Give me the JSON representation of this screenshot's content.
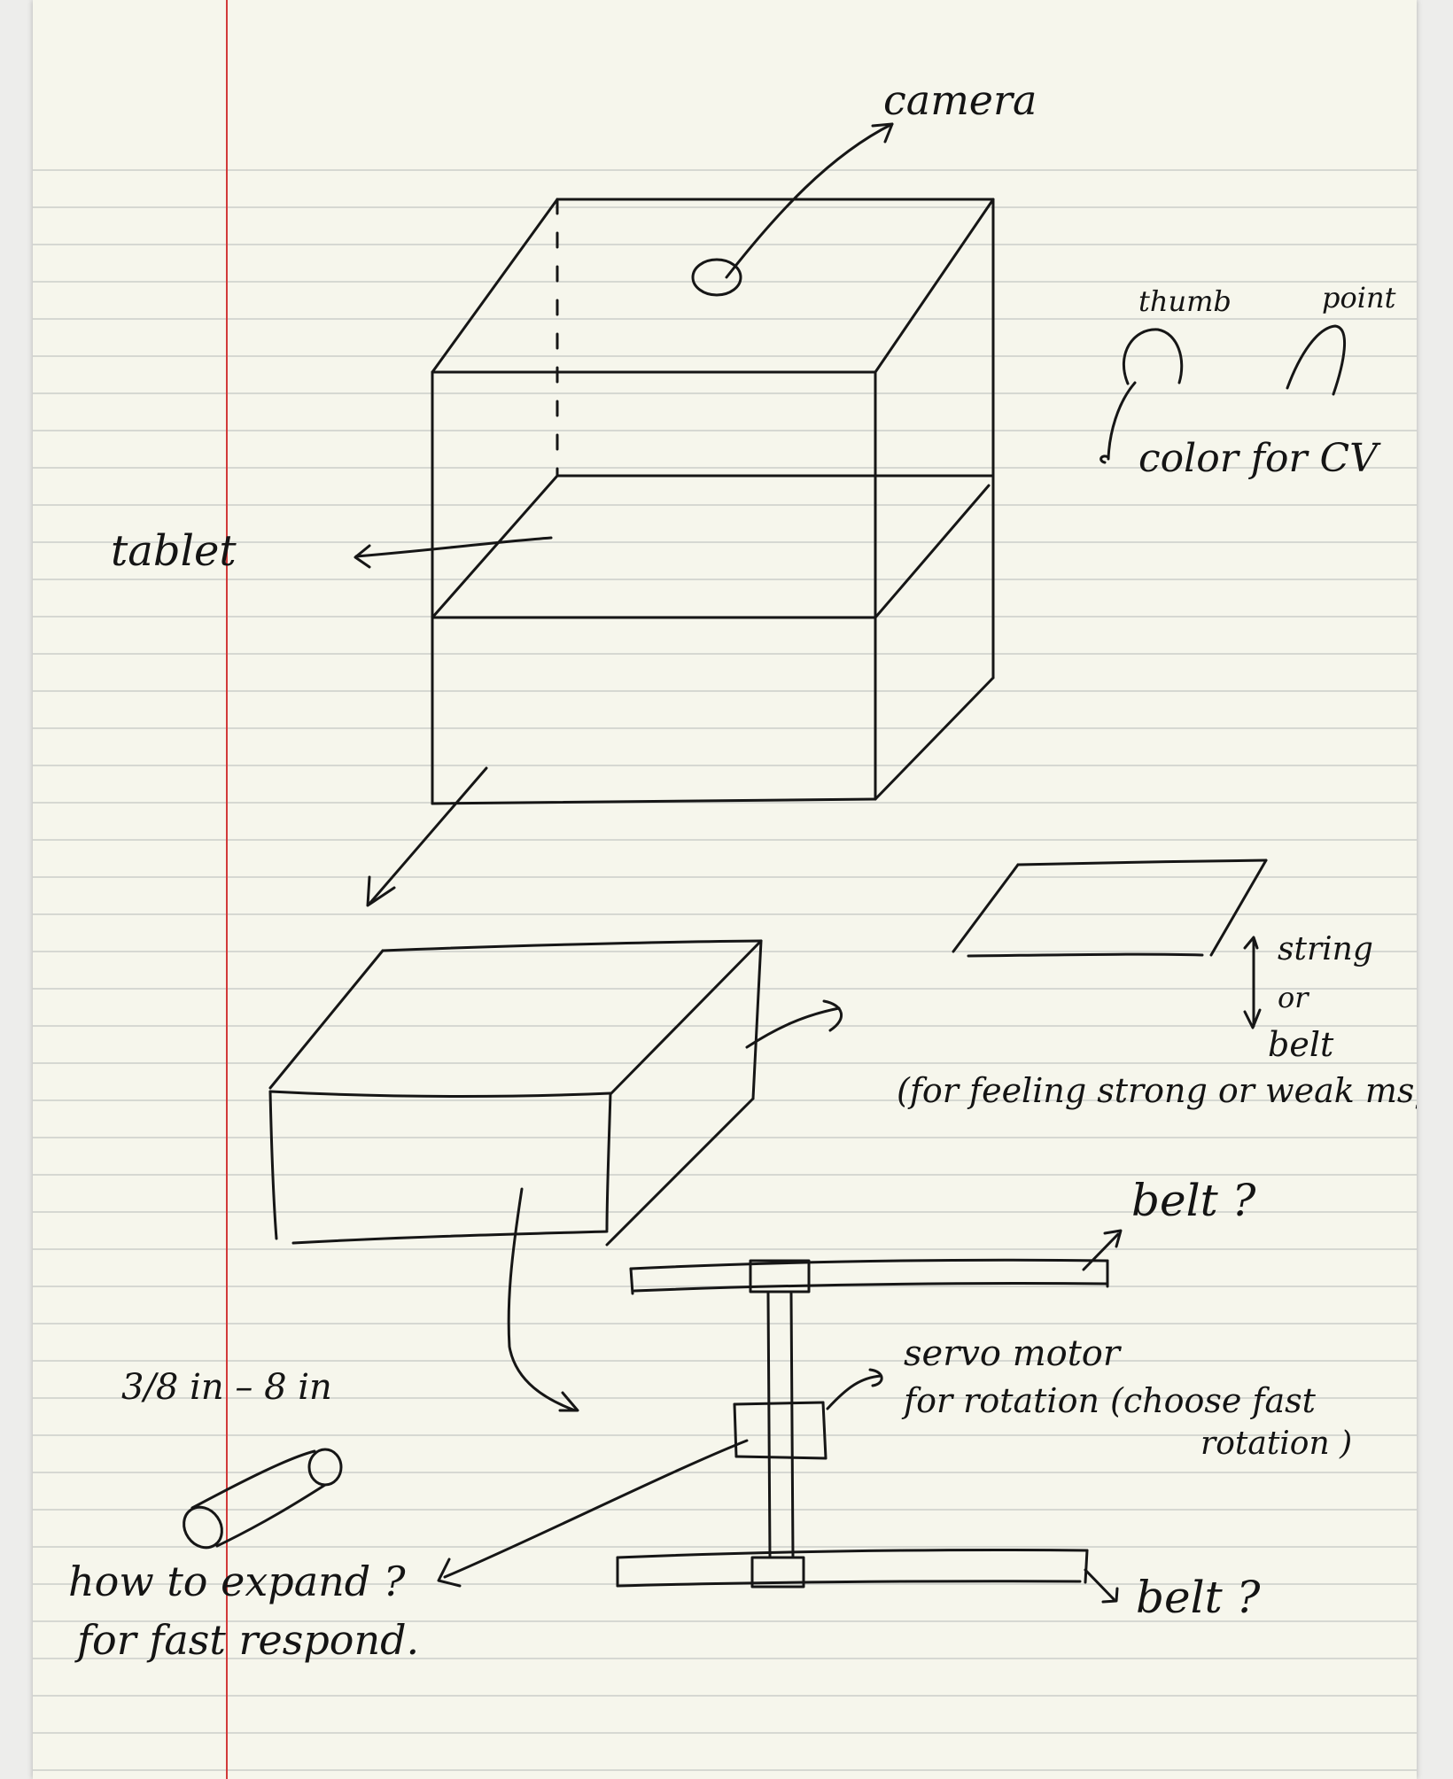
{
  "labels": {
    "camera": "camera",
    "thumb": "thumb",
    "point": "point",
    "color_for_cv": "color for CV",
    "tablet": "tablet",
    "string": "string",
    "or": "or",
    "belt_top": "belt",
    "feeling": "(for feeling strong or weak msg)",
    "belt_q1": "belt ?",
    "servo_motor": "servo motor",
    "for_rotation": "for rotation (choose fast",
    "rotation_close": "rotation )",
    "size_range": "3/8 in  –  8 in",
    "how_to_expand": "how to expand ?",
    "fast_respond": "for fast respond.",
    "belt_q2": "belt ?"
  },
  "colors": {
    "paper": "#f6f6ec",
    "rule_line": "#d6d8d2",
    "margin_line": "#d23a3a",
    "ink": "#161616"
  }
}
